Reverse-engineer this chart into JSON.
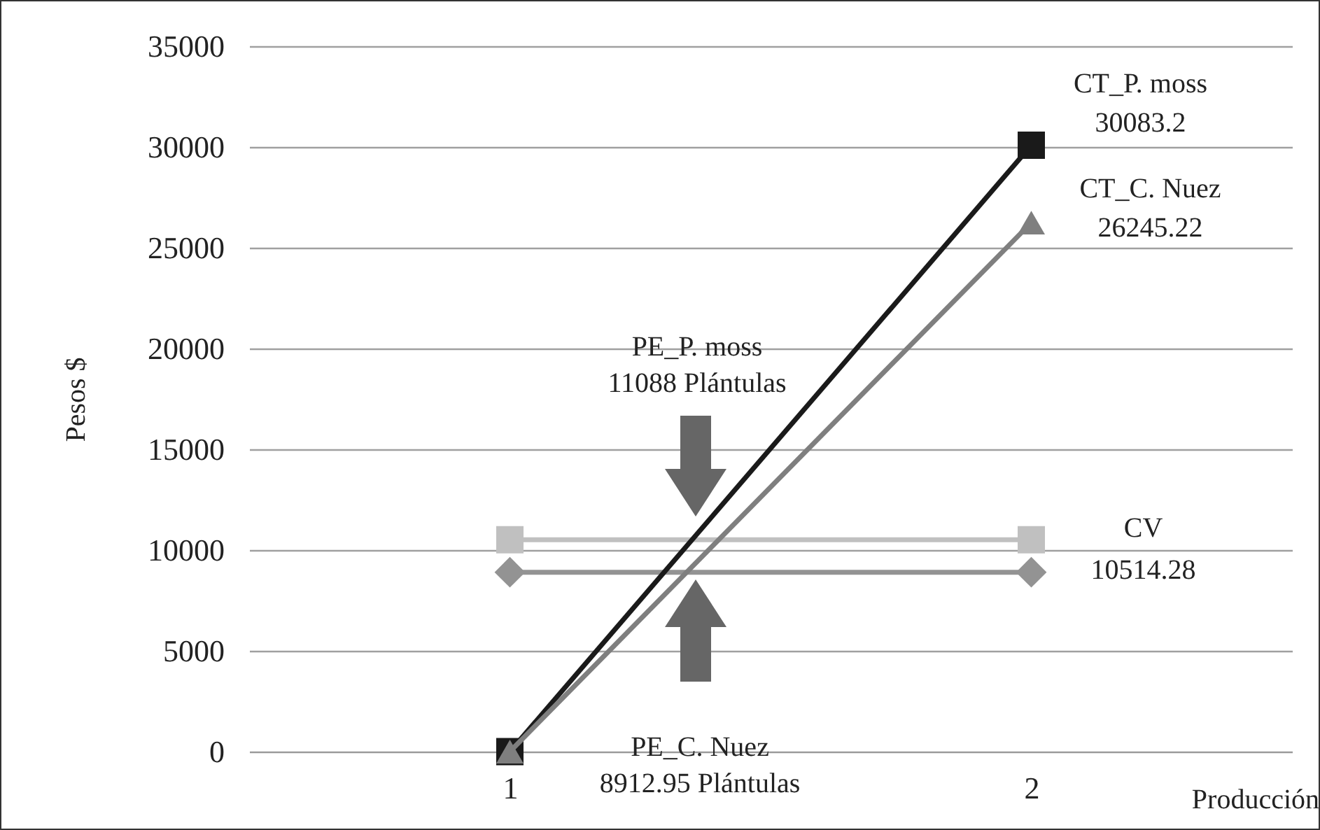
{
  "chart_data": {
    "type": "line",
    "xlabel": "Producción",
    "ylabel": "Pesos $",
    "categories": [
      "1",
      "2"
    ],
    "series": [
      {
        "name": "CV",
        "color": "#c0c0c0",
        "marker": "square",
        "values": [
          10514.28,
          10514.28
        ],
        "value_labels": [
          null,
          "10514.28"
        ]
      },
      {
        "color": "#939393",
        "marker": "diamond",
        "values": [
          8900,
          8900
        ]
      },
      {
        "name": "CT_P. moss",
        "color": "#1a1a1a",
        "marker": "square",
        "values": [
          0,
          30083.2
        ],
        "value_labels": [
          null,
          "30083.2"
        ]
      },
      {
        "name": "CT_C. Nuez",
        "color": "#7f7f7f",
        "marker": "triangle",
        "values": [
          0,
          26245.22
        ],
        "value_labels": [
          null,
          "26245.22"
        ]
      }
    ],
    "ylim": [
      0,
      35000
    ],
    "yticks": [
      0,
      5000,
      10000,
      15000,
      20000,
      25000,
      30000,
      35000
    ],
    "grid": "y",
    "annotations": [
      "PE_P. moss\n11088 Plántulas",
      "PE_C. Nuez\n8912.95 Plántulas"
    ]
  }
}
